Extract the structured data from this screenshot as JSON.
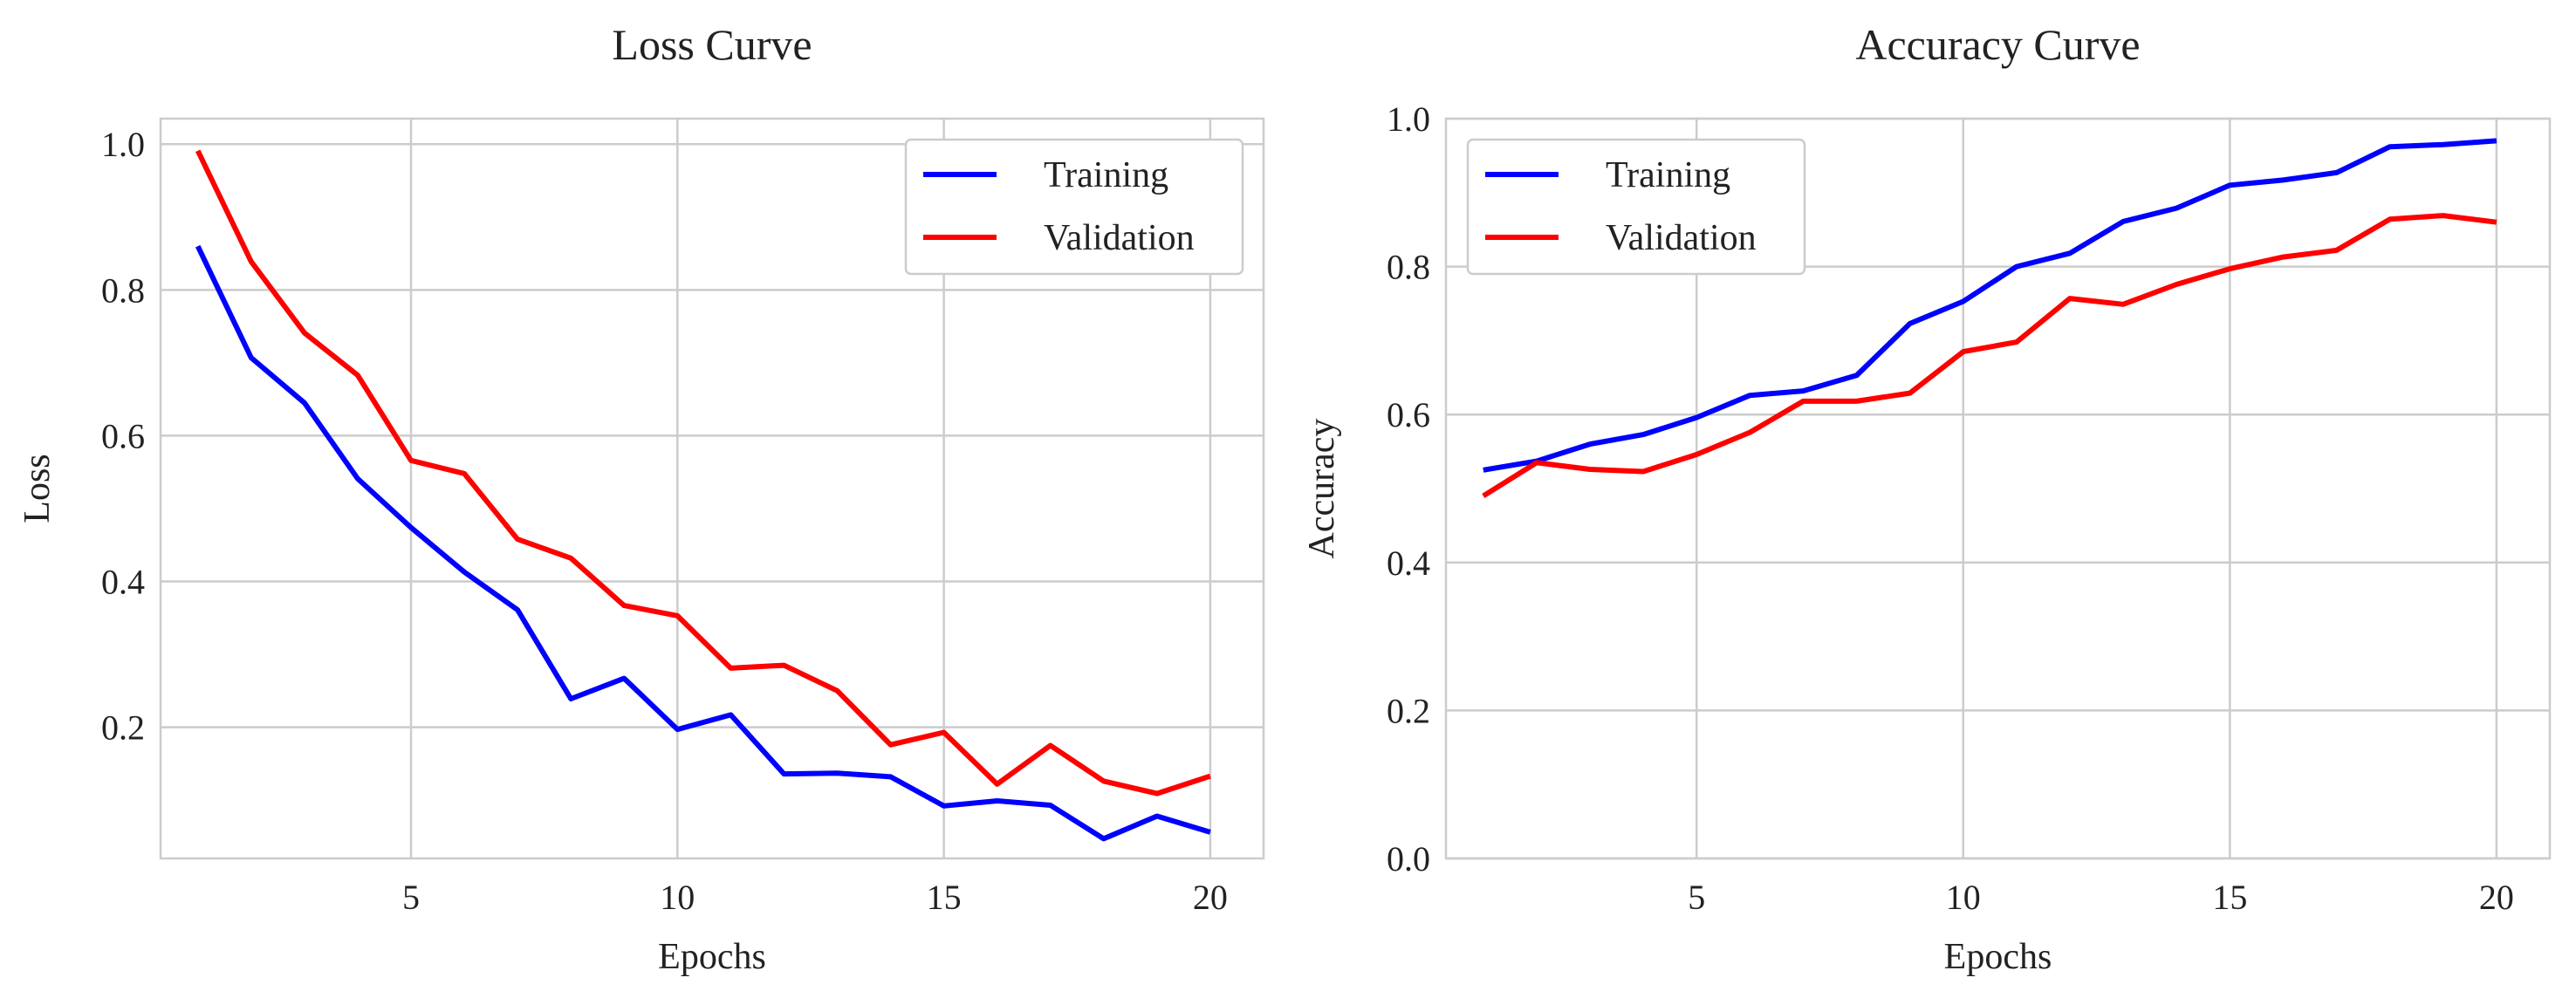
{
  "chart_data": [
    {
      "type": "line",
      "title": "Loss Curve",
      "xlabel": "Epochs",
      "ylabel": "Loss",
      "x": [
        1,
        2,
        3,
        4,
        5,
        6,
        7,
        8,
        9,
        10,
        11,
        12,
        13,
        14,
        15,
        16,
        17,
        18,
        19,
        20
      ],
      "xlim": [
        0.3,
        21.0
      ],
      "ylim": [
        0.02,
        1.035
      ],
      "xticks": [
        5,
        10,
        15,
        20
      ],
      "yticks": [
        0.2,
        0.4,
        0.6,
        0.8,
        1.0
      ],
      "grid": true,
      "legend": "upper right",
      "series": [
        {
          "name": "Training",
          "color": "#0000ff",
          "values": [
            0.86,
            0.707,
            0.645,
            0.541,
            0.474,
            0.413,
            0.361,
            0.239,
            0.267,
            0.197,
            0.217,
            0.136,
            0.137,
            0.132,
            0.092,
            0.099,
            0.093,
            0.047,
            0.078,
            0.056
          ]
        },
        {
          "name": "Validation",
          "color": "#ff0000",
          "values": [
            0.991,
            0.839,
            0.741,
            0.683,
            0.566,
            0.548,
            0.458,
            0.432,
            0.367,
            0.353,
            0.281,
            0.285,
            0.25,
            0.176,
            0.193,
            0.122,
            0.175,
            0.126,
            0.109,
            0.133
          ]
        }
      ]
    },
    {
      "type": "line",
      "title": "Accuracy Curve",
      "xlabel": "Epochs",
      "ylabel": "Accuracy",
      "x": [
        1,
        2,
        3,
        4,
        5,
        6,
        7,
        8,
        9,
        10,
        11,
        12,
        13,
        14,
        15,
        16,
        17,
        18,
        19,
        20
      ],
      "xlim": [
        0.3,
        21.0
      ],
      "ylim": [
        0.0,
        1.0
      ],
      "xticks": [
        5,
        10,
        15,
        20
      ],
      "yticks": [
        0.0,
        0.2,
        0.4,
        0.6,
        0.8,
        1.0
      ],
      "grid": true,
      "legend": "upper left",
      "series": [
        {
          "name": "Training",
          "color": "#0000ff",
          "values": [
            0.525,
            0.537,
            0.56,
            0.573,
            0.596,
            0.626,
            0.632,
            0.653,
            0.723,
            0.753,
            0.8,
            0.818,
            0.861,
            0.879,
            0.91,
            0.917,
            0.927,
            0.962,
            0.965,
            0.97
          ]
        },
        {
          "name": "Validation",
          "color": "#ff0000",
          "values": [
            0.49,
            0.535,
            0.526,
            0.523,
            0.546,
            0.576,
            0.618,
            0.618,
            0.629,
            0.685,
            0.698,
            0.757,
            0.749,
            0.776,
            0.797,
            0.813,
            0.822,
            0.864,
            0.869,
            0.86
          ]
        }
      ]
    }
  ]
}
